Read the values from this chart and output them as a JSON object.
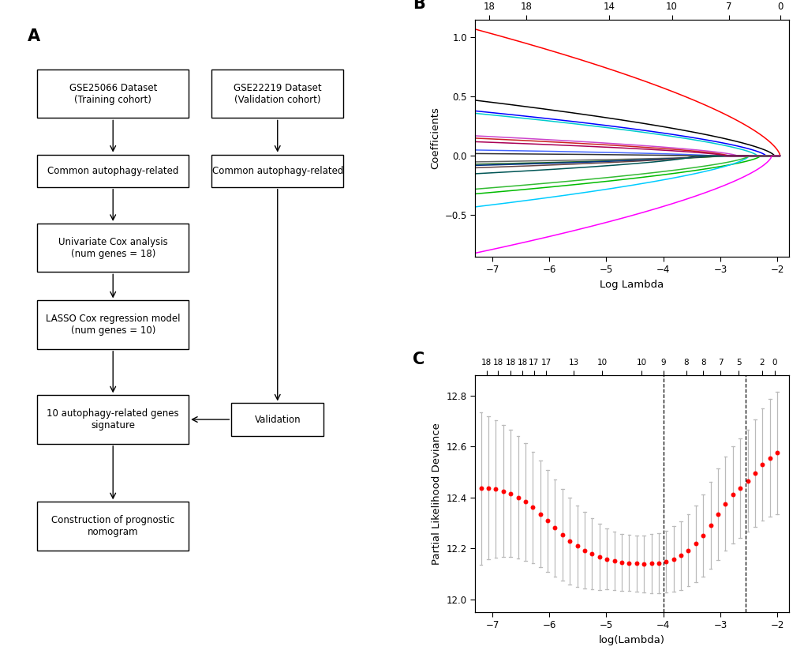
{
  "panel_A_label": "A",
  "panel_B_label": "B",
  "panel_C_label": "C",
  "panel_B": {
    "xlim": [
      -7.3,
      -1.8
    ],
    "ylim": [
      -0.85,
      1.15
    ],
    "xlabel": "Log Lambda",
    "ylabel": "Coefficients",
    "top_ticks": [
      "18",
      "18",
      "14",
      "10",
      "7",
      "0"
    ],
    "top_tick_pos": [
      -7.05,
      -6.4,
      -4.95,
      -3.85,
      -2.85,
      -1.95
    ],
    "xticks": [
      -7,
      -6,
      -5,
      -4,
      -3,
      -2
    ],
    "yticks": [
      -0.5,
      0.0,
      0.5,
      1.0
    ]
  },
  "panel_C": {
    "xlim": [
      -7.3,
      -1.8
    ],
    "ylim": [
      11.95,
      12.88
    ],
    "xlabel": "log(Lambda)",
    "ylabel": "Partial Likelihood Deviance",
    "top_ticks": [
      "18",
      "18",
      "18",
      "18",
      "17",
      "17",
      "13",
      "10",
      "10",
      "9",
      "8",
      "8",
      "7",
      "5",
      "2",
      "0"
    ],
    "top_tick_pos": [
      -7.1,
      -6.9,
      -6.68,
      -6.47,
      -6.27,
      -6.06,
      -5.57,
      -5.07,
      -4.38,
      -4.0,
      -3.6,
      -3.3,
      -3.0,
      -2.68,
      -2.27,
      -2.05
    ],
    "xticks": [
      -7,
      -6,
      -5,
      -4,
      -3,
      -2
    ],
    "yticks": [
      12.0,
      12.2,
      12.4,
      12.6,
      12.8
    ],
    "vline1": -4.0,
    "vline2": -2.55
  },
  "lasso_curves": {
    "colors": [
      "#FF0000",
      "#000000",
      "#0000FF",
      "#00CCCC",
      "#CC44CC",
      "#CC2222",
      "#4466FF",
      "#333333",
      "#666666",
      "#226622",
      "#003388",
      "#664444",
      "#005555",
      "#00BB00",
      "#00CCFF",
      "#33BB33",
      "#FF00FF",
      "#AA0055"
    ],
    "start_coefs": [
      1.07,
      0.47,
      0.38,
      0.36,
      0.17,
      0.15,
      0.05,
      0.02,
      -0.05,
      -0.07,
      -0.08,
      -0.1,
      -0.15,
      -0.32,
      -0.43,
      -0.28,
      -0.82,
      0.12
    ],
    "exit_x": [
      -1.95,
      -2.05,
      -2.2,
      -2.35,
      -2.7,
      -2.85,
      -3.1,
      -3.4,
      -2.95,
      -3.05,
      -3.25,
      -3.35,
      -3.45,
      -2.3,
      -2.5,
      -2.5,
      -2.1,
      -2.9
    ]
  },
  "cv_curve": {
    "x_points": [
      -7.2,
      -7.07,
      -6.94,
      -6.81,
      -6.68,
      -6.55,
      -6.42,
      -6.29,
      -6.16,
      -6.03,
      -5.9,
      -5.77,
      -5.64,
      -5.51,
      -5.38,
      -5.25,
      -5.12,
      -4.99,
      -4.86,
      -4.73,
      -4.6,
      -4.47,
      -4.34,
      -4.21,
      -4.08,
      -3.95,
      -3.82,
      -3.69,
      -3.56,
      -3.43,
      -3.3,
      -3.17,
      -3.04,
      -2.91,
      -2.78,
      -2.65,
      -2.52,
      -2.39,
      -2.26,
      -2.13,
      -2.0
    ],
    "y_points": [
      12.435,
      12.437,
      12.432,
      12.425,
      12.415,
      12.4,
      12.382,
      12.36,
      12.335,
      12.308,
      12.28,
      12.252,
      12.228,
      12.208,
      12.192,
      12.178,
      12.167,
      12.158,
      12.15,
      12.145,
      12.142,
      12.14,
      12.139,
      12.14,
      12.142,
      12.148,
      12.158,
      12.172,
      12.192,
      12.218,
      12.25,
      12.29,
      12.335,
      12.375,
      12.41,
      12.435,
      12.465,
      12.495,
      12.528,
      12.555,
      12.575
    ],
    "errors": [
      0.3,
      0.28,
      0.27,
      0.26,
      0.25,
      0.24,
      0.23,
      0.22,
      0.21,
      0.2,
      0.19,
      0.18,
      0.17,
      0.16,
      0.15,
      0.14,
      0.13,
      0.12,
      0.115,
      0.112,
      0.11,
      0.11,
      0.112,
      0.115,
      0.118,
      0.122,
      0.128,
      0.135,
      0.142,
      0.15,
      0.16,
      0.17,
      0.18,
      0.185,
      0.19,
      0.195,
      0.2,
      0.21,
      0.22,
      0.23,
      0.24
    ]
  }
}
